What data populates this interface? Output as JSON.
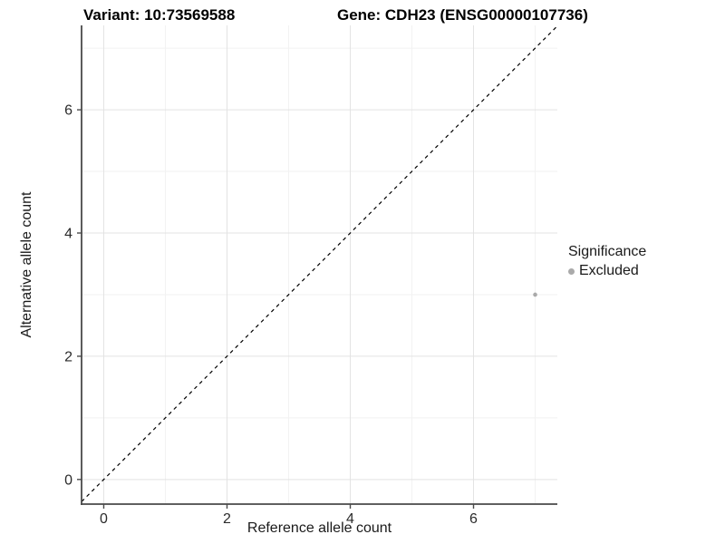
{
  "header": {
    "variant_title": "Variant: 10:73569588",
    "gene_title": "Gene: CDH23 (ENSG00000107736)"
  },
  "chart_data": {
    "type": "scatter",
    "title_left": "Variant: 10:73569588",
    "title_right": "Gene: CDH23 (ENSG00000107736)",
    "xlabel": "Reference allele count",
    "ylabel": "Alternative allele count",
    "xlim": [
      -0.36,
      7.36
    ],
    "ylim": [
      -0.4,
      7.37
    ],
    "x_major_ticks": [
      0,
      2,
      4,
      6
    ],
    "y_major_ticks": [
      0,
      2,
      4,
      6
    ],
    "x_minor_gridlines": [
      1,
      3,
      5,
      7
    ],
    "y_minor_gridlines": [
      1,
      3,
      5,
      7
    ],
    "grid": true,
    "aspect": "equal",
    "identity_line": {
      "equation": "y = x",
      "style": "dashed",
      "color": "#000000"
    },
    "series": [
      {
        "name": "Excluded",
        "color": "#aaaaaa",
        "points": [
          {
            "x": 7,
            "y": 3
          }
        ]
      }
    ],
    "legend": {
      "title": "Significance",
      "position": "right",
      "items": [
        {
          "label": "Excluded",
          "color": "#aaaaaa"
        }
      ]
    }
  },
  "colors": {
    "background": "#ffffff",
    "grid_major": "#e3e3e3",
    "grid_minor": "#f2f2f2",
    "axis_line": "#4a4a4a",
    "tick_mark": "#4a4a4a",
    "tick_label": "#2b2b2b",
    "title": "#000000",
    "point": "#aaaaaa",
    "identity_line": "#000000"
  }
}
